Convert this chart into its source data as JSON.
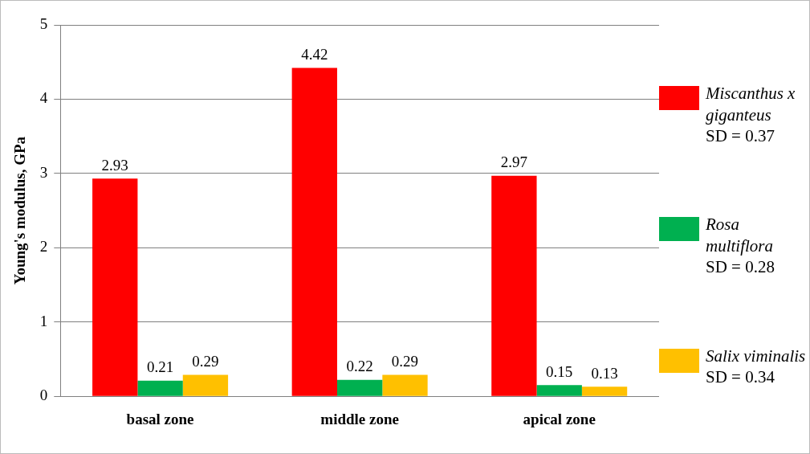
{
  "chart_data": {
    "type": "bar",
    "ylabel": "Young's modulus, GPa",
    "categories": [
      "basal zone",
      "middle zone",
      "apical zone"
    ],
    "series": [
      {
        "name": "Miscanthus x giganteus",
        "color": "#ff0000",
        "values": [
          2.93,
          4.42,
          2.97
        ]
      },
      {
        "name": "Rosa multiflora",
        "color": "#00b050",
        "values": [
          0.21,
          0.22,
          0.15
        ]
      },
      {
        "name": "Salix viminalis",
        "color": "#ffc000",
        "values": [
          0.29,
          0.29,
          0.13
        ]
      }
    ],
    "annotations": [
      "SD = 0.37",
      "SD = 0.28",
      "SD = 0.34"
    ],
    "ylim": [
      0,
      5
    ],
    "yticks": [
      0,
      1,
      2,
      3,
      4,
      5
    ],
    "grid": "y",
    "legend": "right",
    "data_labels": true
  }
}
